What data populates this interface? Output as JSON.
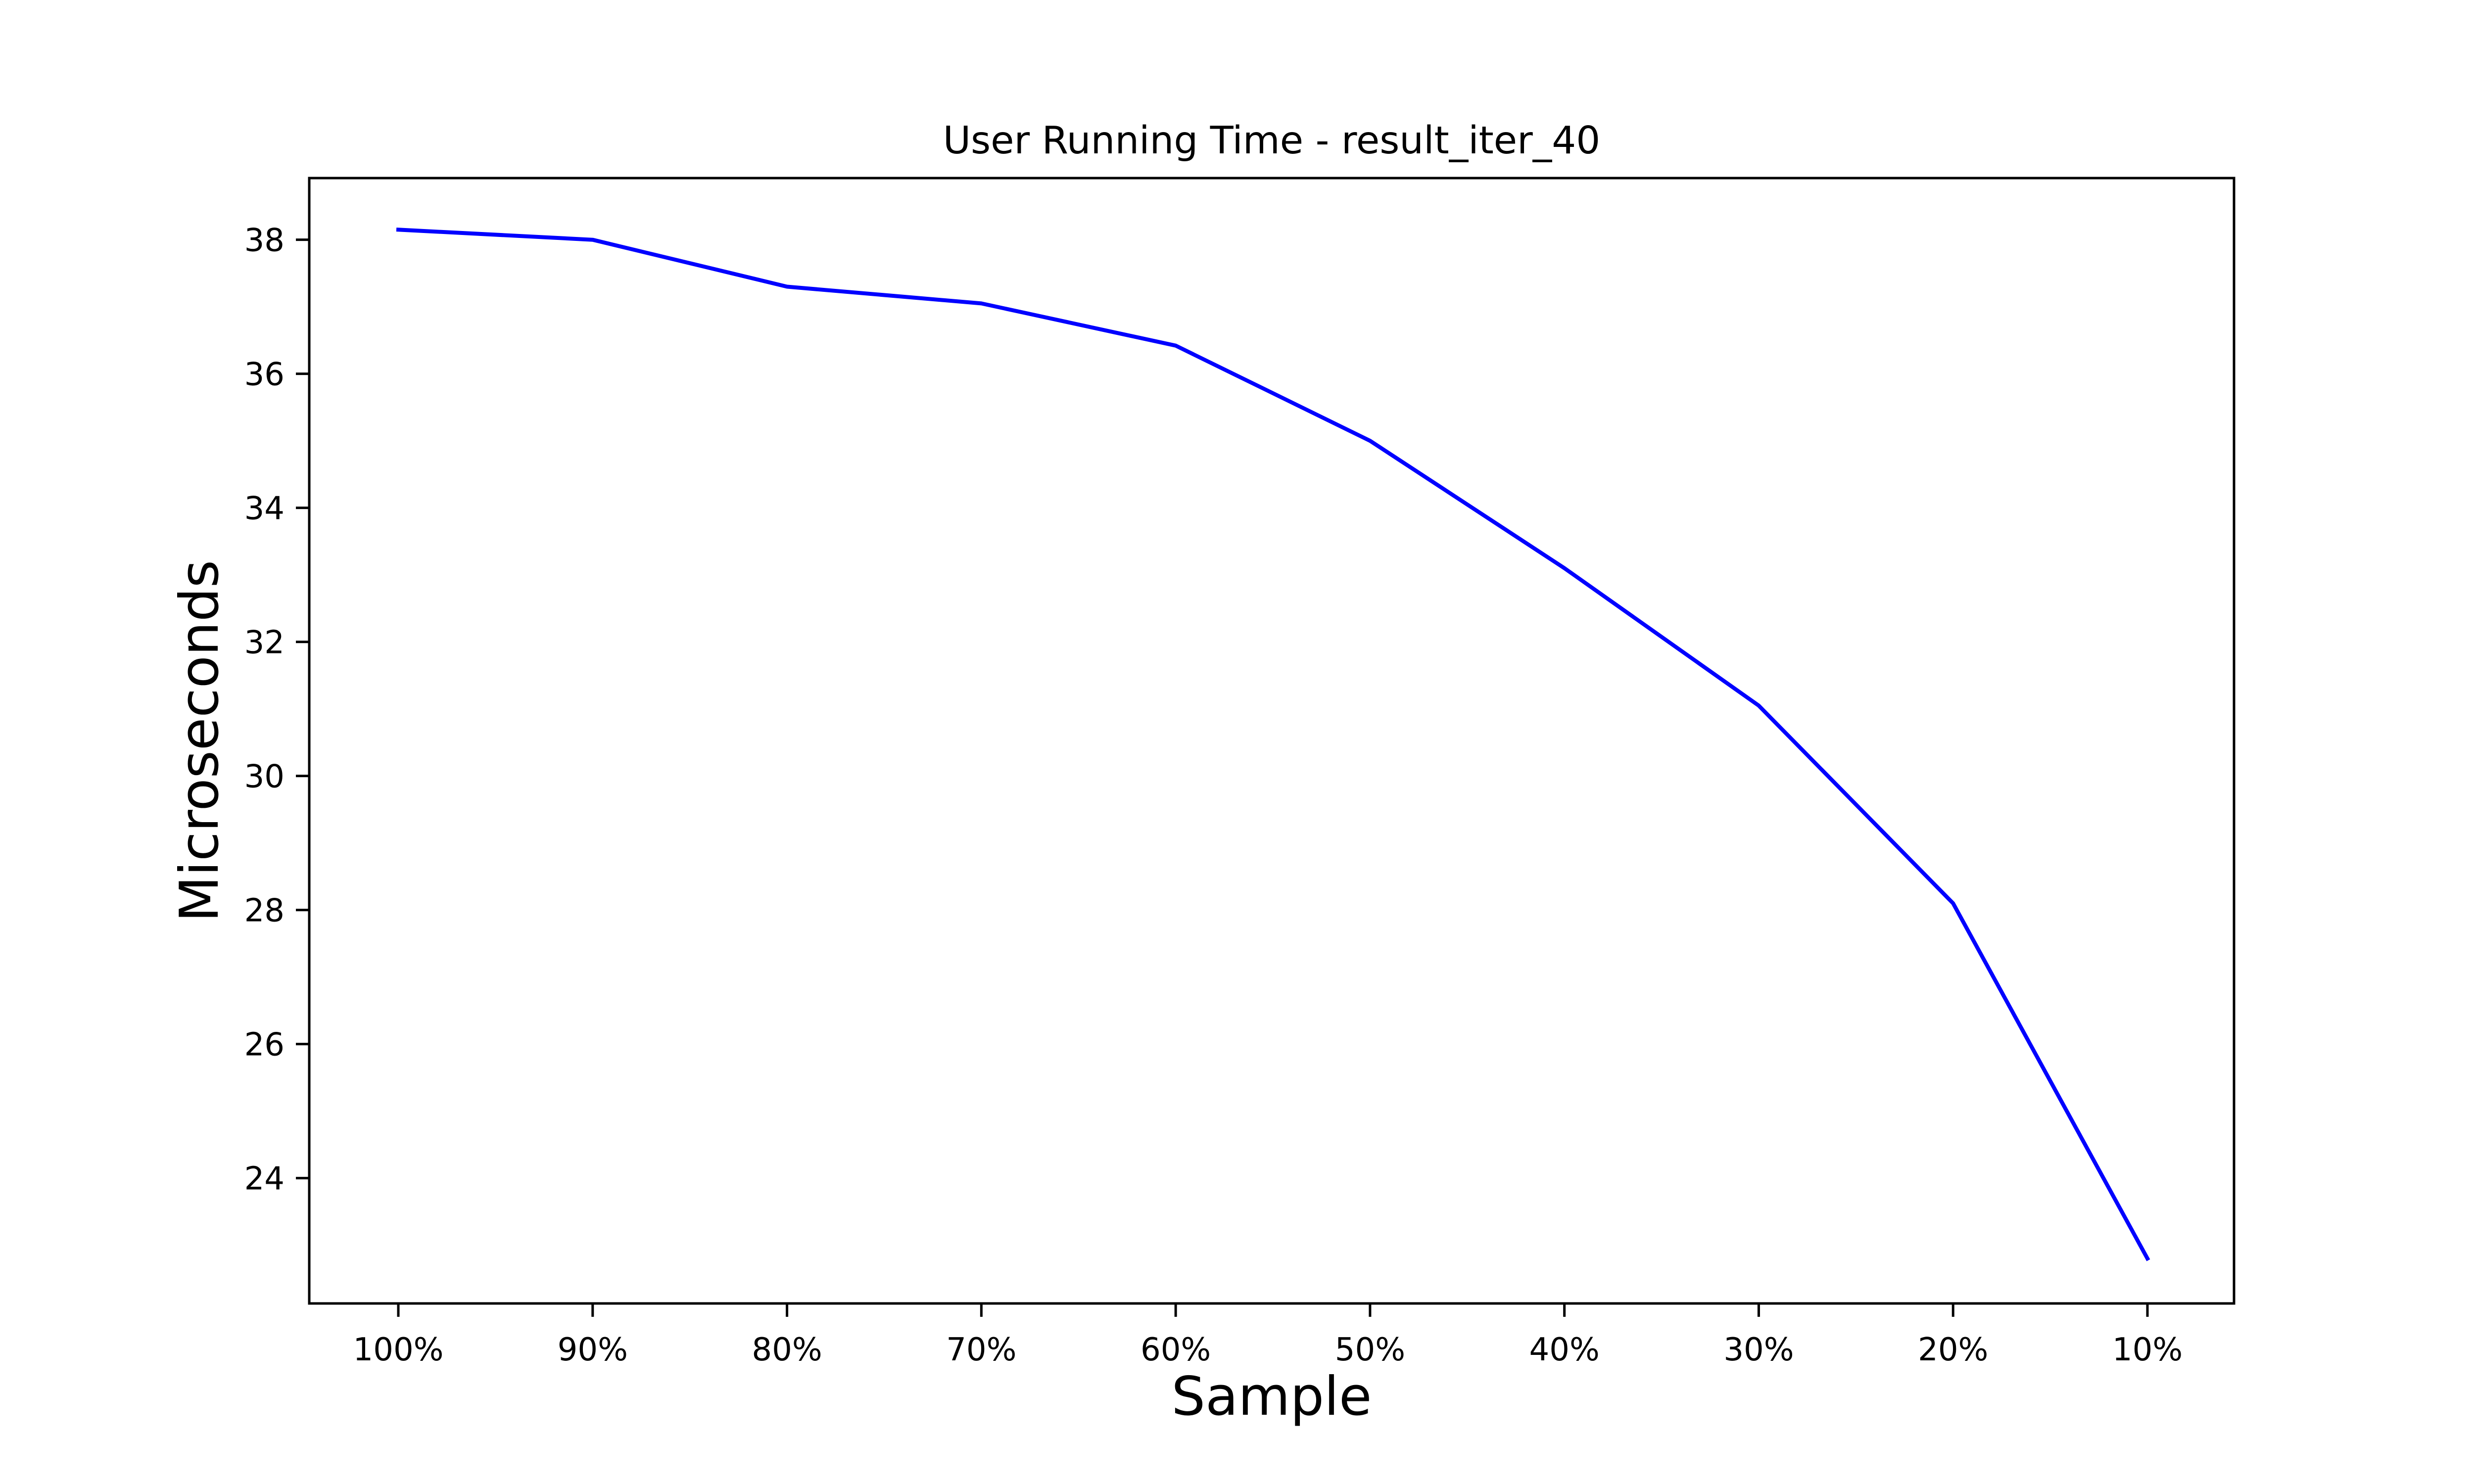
{
  "chart_data": {
    "type": "line",
    "title": "User Running Time - result_iter_40",
    "xlabel": "Sample",
    "ylabel": "Microseconds",
    "categories": [
      "100%",
      "90%",
      "80%",
      "70%",
      "60%",
      "50%",
      "40%",
      "30%",
      "20%",
      "10%"
    ],
    "series": [
      {
        "color": "#0000ff",
        "values": [
          38.15,
          38.0,
          37.3,
          37.05,
          36.42,
          35.0,
          33.1,
          31.05,
          28.1,
          22.8
        ]
      }
    ],
    "yticks": [
      24,
      26,
      28,
      30,
      32,
      34,
      36,
      38
    ],
    "ylim": [
      22.13,
      38.92
    ],
    "grid": false,
    "legend": "none"
  }
}
